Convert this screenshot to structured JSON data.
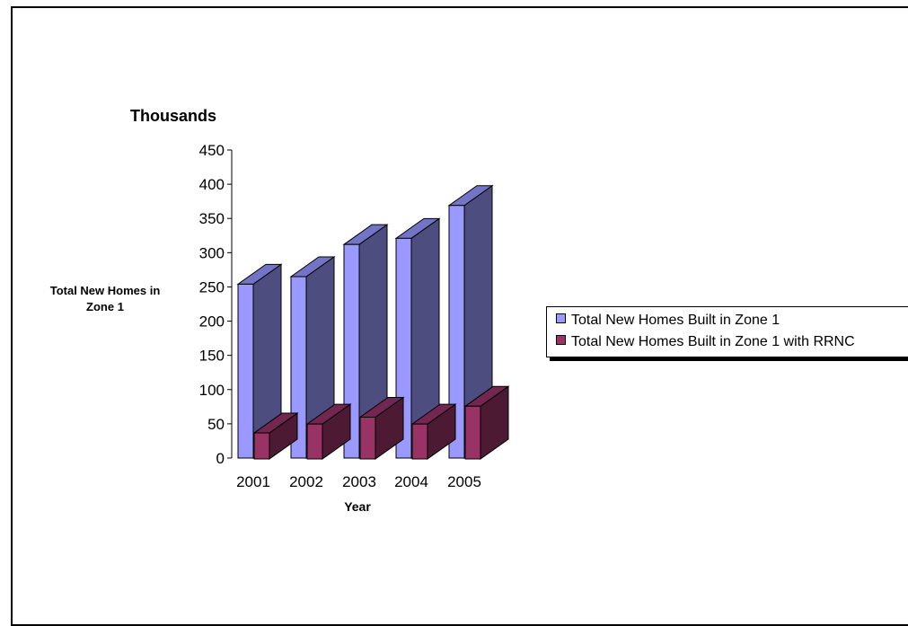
{
  "chart_data": {
    "type": "bar",
    "title": "",
    "unit_label": "Thousands",
    "ylabel": "Total New Homes in Zone 1",
    "xlabel": "Year",
    "categories": [
      "2001",
      "2002",
      "2003",
      "2004",
      "2005"
    ],
    "yticks": [
      0,
      50,
      100,
      150,
      200,
      250,
      300,
      350,
      400,
      450
    ],
    "ylim": [
      0,
      450
    ],
    "series": [
      {
        "name": "Total New Homes Built in Zone 1",
        "values": [
          254,
          265,
          312,
          321,
          369
        ],
        "color": "#9999ff",
        "side_color": "#4d4d80",
        "top_color": "#7474c6"
      },
      {
        "name": "Total New Homes Built in Zone 1 with RRNC",
        "values": [
          38,
          51,
          61,
          51,
          77
        ],
        "color": "#993366",
        "side_color": "#4d1a33",
        "top_color": "#732650"
      }
    ],
    "legend_position": "right",
    "grid": false,
    "style": "3d-clustered"
  }
}
